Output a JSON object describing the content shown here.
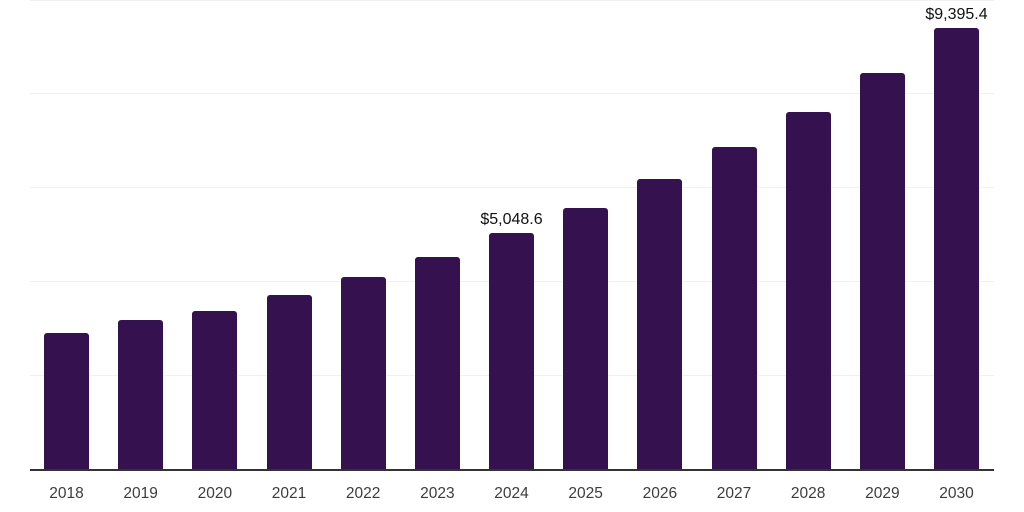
{
  "chart_data": {
    "type": "bar",
    "title": "",
    "xlabel": "",
    "ylabel": "",
    "ylim": [
      0,
      10000
    ],
    "grid": "horizontal",
    "grid_values": [
      2000,
      4000,
      6000,
      8000,
      10000
    ],
    "bar_color": "#351150",
    "axis_line_color": "#333333",
    "gridline_color": "#f1f1f3",
    "categories": [
      "2018",
      "2019",
      "2020",
      "2021",
      "2022",
      "2023",
      "2024",
      "2025",
      "2026",
      "2027",
      "2028",
      "2029",
      "2030"
    ],
    "values": [
      2915,
      3190,
      3385,
      3725,
      4105,
      4530,
      5048.6,
      5570,
      6190,
      6870,
      7615,
      8445,
      9395.4
    ],
    "data_labels": [
      "",
      "",
      "",
      "",
      "",
      "",
      "$5,048.6",
      "",
      "",
      "",
      "",
      "",
      "$9,395.4"
    ],
    "legend": []
  }
}
